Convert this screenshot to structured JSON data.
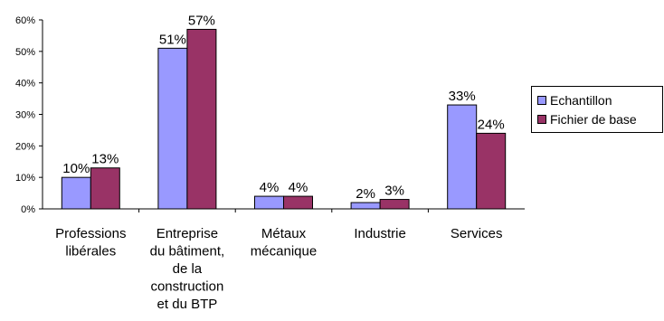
{
  "chart_data": {
    "type": "bar",
    "categories": [
      [
        "Professions",
        "libérales"
      ],
      [
        "Entreprise",
        "du bâtiment,",
        "de la",
        "construction",
        "et du BTP"
      ],
      [
        "Métaux",
        "mécanique"
      ],
      [
        "Industrie"
      ],
      [
        "Services"
      ]
    ],
    "series": [
      {
        "name": "Echantillon",
        "values": [
          10,
          51,
          4,
          2,
          33
        ],
        "labels": [
          "10%",
          "51%",
          "4%",
          "2%",
          "33%"
        ],
        "color": "#9999ff"
      },
      {
        "name": "Fichier de base",
        "values": [
          13,
          57,
          4,
          3,
          24
        ],
        "labels": [
          "13%",
          "57%",
          "4%",
          "3%",
          "24%"
        ],
        "color": "#993366"
      }
    ],
    "ylim": [
      0,
      60
    ],
    "yticks": [
      0,
      10,
      20,
      30,
      40,
      50,
      60
    ],
    "ytick_labels": [
      "0%",
      "10%",
      "20%",
      "30%",
      "40%",
      "50%",
      "60%"
    ],
    "grid": false,
    "legend_position": "right"
  }
}
